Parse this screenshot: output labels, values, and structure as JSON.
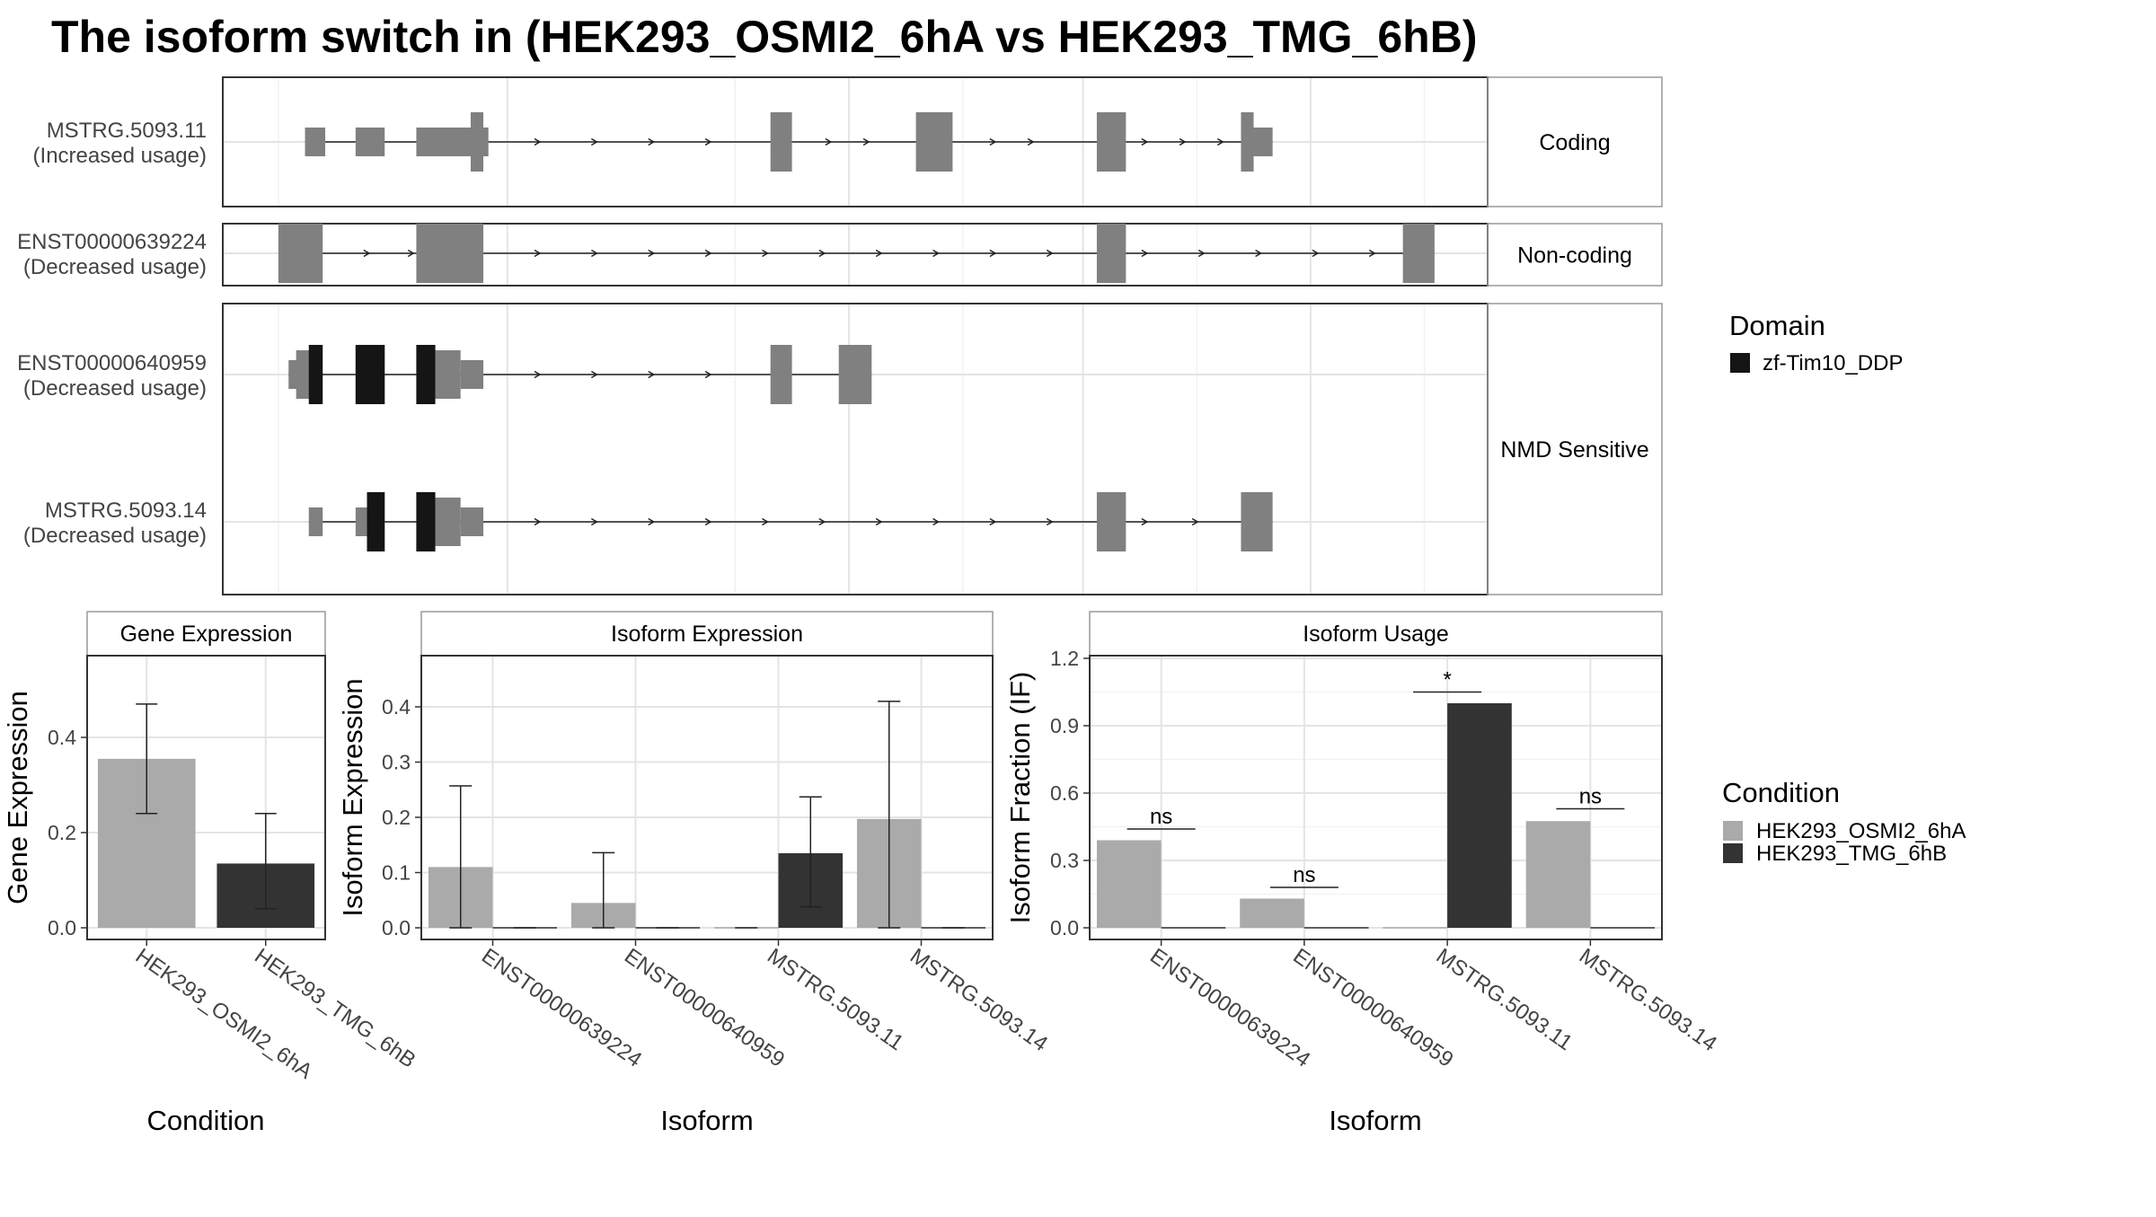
{
  "title": "The isoform switch in  (HEK293_OSMI2_6hA vs HEK293_TMG_6hB)",
  "colors": {
    "exon": "#808080",
    "domain": "#151515",
    "cond_a": "#aaaaaa",
    "cond_b": "#333333",
    "panel_border": "#333333",
    "strip_border": "#999999",
    "grid_major": "#e4e4e4",
    "grid_minor": "#f2f2f2"
  },
  "transcript_plot": {
    "groups": [
      {
        "label": "Coding",
        "transcripts": [
          0
        ]
      },
      {
        "label": "Non-coding",
        "transcripts": [
          1
        ]
      },
      {
        "label": "NMD Sensitive",
        "transcripts": [
          2,
          3
        ]
      }
    ],
    "transcripts": [
      {
        "id": "MSTRG.5093.11",
        "usage": "(Increased usage)",
        "exons": [
          [
            0.065,
            0.081,
            "thin"
          ],
          [
            0.105,
            0.128,
            "thin"
          ],
          [
            0.153,
            0.21,
            "thin"
          ],
          [
            0.196,
            0.206,
            "thick"
          ],
          [
            0.433,
            0.45,
            "thick"
          ],
          [
            0.548,
            0.577,
            "thick"
          ],
          [
            0.691,
            0.714,
            "thick"
          ],
          [
            0.805,
            0.815,
            "thick"
          ],
          [
            0.815,
            0.83,
            "thin"
          ]
        ],
        "domains": [],
        "arrows": [
          0.25,
          0.295,
          0.34,
          0.385,
          0.48,
          0.51,
          0.61,
          0.64,
          0.73,
          0.76,
          0.79
        ]
      },
      {
        "id": "ENST00000639224",
        "usage": "(Decreased usage)",
        "exons": [
          [
            0.044,
            0.079,
            "thick"
          ],
          [
            0.153,
            0.206,
            "thick"
          ],
          [
            0.691,
            0.714,
            "thick"
          ],
          [
            0.933,
            0.958,
            "thick"
          ]
        ],
        "domains": [],
        "arrows": [
          0.115,
          0.15,
          0.25,
          0.295,
          0.34,
          0.385,
          0.43,
          0.475,
          0.52,
          0.565,
          0.61,
          0.655,
          0.73,
          0.775,
          0.82,
          0.865,
          0.91
        ]
      },
      {
        "id": "ENST00000640959",
        "usage": "(Decreased usage)",
        "exons": [
          [
            0.052,
            0.064,
            "thin"
          ],
          [
            0.058,
            0.076,
            "mid"
          ],
          [
            0.105,
            0.128,
            "thick"
          ],
          [
            0.153,
            0.168,
            "thick"
          ],
          [
            0.168,
            0.188,
            "mid"
          ],
          [
            0.188,
            0.206,
            "thin"
          ],
          [
            0.433,
            0.45,
            "thick"
          ],
          [
            0.487,
            0.513,
            "thick"
          ]
        ],
        "domains": [
          [
            0.068,
            0.079,
            "thick"
          ],
          [
            0.105,
            0.128,
            "thick"
          ],
          [
            0.153,
            0.168,
            "thick"
          ]
        ],
        "arrows": [
          0.25,
          0.295,
          0.34,
          0.385
        ]
      },
      {
        "id": "MSTRG.5093.14",
        "usage": "(Decreased usage)",
        "exons": [
          [
            0.068,
            0.079,
            "thin"
          ],
          [
            0.105,
            0.115,
            "thin"
          ],
          [
            0.114,
            0.128,
            "thick"
          ],
          [
            0.153,
            0.168,
            "thick"
          ],
          [
            0.168,
            0.188,
            "mid"
          ],
          [
            0.188,
            0.206,
            "thin"
          ],
          [
            0.691,
            0.714,
            "thick"
          ],
          [
            0.805,
            0.83,
            "thick"
          ]
        ],
        "domains": [
          [
            0.114,
            0.128,
            "thick"
          ],
          [
            0.153,
            0.168,
            "thick"
          ]
        ],
        "arrows": [
          0.25,
          0.295,
          0.34,
          0.385,
          0.43,
          0.475,
          0.52,
          0.565,
          0.61,
          0.655,
          0.73,
          0.77
        ]
      }
    ],
    "legend": {
      "title": "Domain",
      "items": [
        {
          "label": "zf-Tim10_DDP",
          "color": "#151515"
        }
      ]
    }
  },
  "chart_data": [
    {
      "type": "bar",
      "panel": "Gene Expression",
      "xlabel": "Condition",
      "ylabel": "Gene Expression",
      "ylim": [
        0,
        0.56
      ],
      "yticks": [
        "0.0",
        "0.2",
        "0.4"
      ],
      "categories": [
        "HEK293_OSMI2_6hA",
        "HEK293_TMG_6hB"
      ],
      "values": [
        0.355,
        0.135
      ],
      "error": [
        [
          0.24,
          0.47
        ],
        [
          0.04,
          0.24
        ]
      ],
      "bar_series": [
        "HEK293_OSMI2_6hA",
        "HEK293_TMG_6hB"
      ]
    },
    {
      "type": "bar",
      "panel": "Isoform Expression",
      "xlabel": "Isoform",
      "ylabel": "Isoform Expression",
      "ylim": [
        0,
        0.49
      ],
      "yticks": [
        "0.0",
        "0.1",
        "0.2",
        "0.3",
        "0.4"
      ],
      "categories": [
        "ENST00000639224",
        "ENST00000640959",
        "MSTRG.5093.11",
        "MSTRG.5093.14"
      ],
      "series": [
        {
          "name": "HEK293_OSMI2_6hA",
          "values": [
            0.11,
            0.045,
            0.0,
            0.197
          ],
          "error": [
            [
              0.0,
              0.257
            ],
            [
              0.0,
              0.136
            ],
            [
              0.0,
              0.0
            ],
            [
              0.0,
              0.41
            ]
          ]
        },
        {
          "name": "HEK293_TMG_6hB",
          "values": [
            0.0,
            0.0,
            0.135,
            0.0
          ],
          "error": [
            [
              0.0,
              0.0
            ],
            [
              0.0,
              0.0
            ],
            [
              0.038,
              0.237
            ],
            [
              0.0,
              0.0
            ]
          ]
        }
      ]
    },
    {
      "type": "bar",
      "panel": "Isoform Usage",
      "xlabel": "Isoform",
      "ylabel": "Isoform Fraction (IF)",
      "ylim": [
        -0.05,
        1.22
      ],
      "yticks": [
        "0.0",
        "0.3",
        "0.6",
        "0.9",
        "1.2"
      ],
      "categories": [
        "ENST00000639224",
        "ENST00000640959",
        "MSTRG.5093.11",
        "MSTRG.5093.14"
      ],
      "series": [
        {
          "name": "HEK293_OSMI2_6hA",
          "values": [
            0.39,
            0.13,
            0.0,
            0.475
          ]
        },
        {
          "name": "HEK293_TMG_6hB",
          "values": [
            0.0,
            0.0,
            1.0,
            0.0
          ]
        }
      ],
      "significance": [
        {
          "label": "ns",
          "y": 0.44
        },
        {
          "label": "ns",
          "y": 0.18
        },
        {
          "label": "*",
          "y": 1.05
        },
        {
          "label": "ns",
          "y": 0.53
        }
      ]
    }
  ],
  "condition_legend": {
    "title": "Condition",
    "items": [
      {
        "label": "HEK293_OSMI2_6hA",
        "color": "#aaaaaa"
      },
      {
        "label": "HEK293_TMG_6hB",
        "color": "#333333"
      }
    ]
  }
}
